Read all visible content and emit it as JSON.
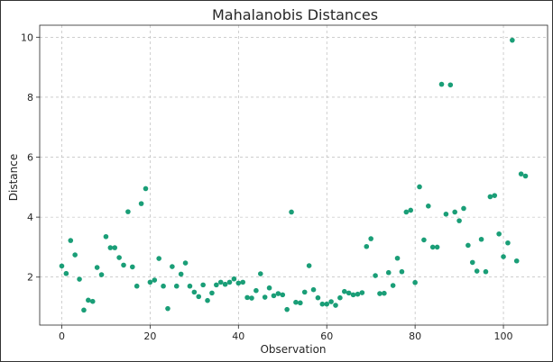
{
  "chart_data": {
    "type": "scatter",
    "title": "Mahalanobis Distances",
    "xlabel": "Observation",
    "ylabel": "Distance",
    "xlim": [
      -5,
      110
    ],
    "ylim": [
      0.4,
      10.4
    ],
    "x_ticks": [
      0,
      20,
      40,
      60,
      80,
      100
    ],
    "y_ticks": [
      2,
      4,
      6,
      8,
      10
    ],
    "grid": true,
    "marker_color": "#1a9e77",
    "x": [
      0,
      1,
      2,
      3,
      4,
      5,
      6,
      7,
      8,
      9,
      10,
      11,
      12,
      13,
      14,
      15,
      16,
      17,
      18,
      19,
      20,
      21,
      22,
      23,
      24,
      25,
      26,
      27,
      28,
      29,
      30,
      31,
      32,
      33,
      34,
      35,
      36,
      37,
      38,
      39,
      40,
      41,
      42,
      43,
      44,
      45,
      46,
      47,
      48,
      49,
      50,
      51,
      52,
      53,
      54,
      55,
      56,
      57,
      58,
      59,
      60,
      61,
      62,
      63,
      64,
      65,
      66,
      67,
      68,
      69,
      70,
      71,
      72,
      73,
      74,
      75,
      76,
      77,
      78,
      79,
      80,
      81,
      82,
      83,
      84,
      85,
      86,
      87,
      88,
      89,
      90,
      91,
      92,
      93,
      94,
      95,
      96,
      97,
      98,
      99,
      100,
      101,
      102,
      103,
      104,
      105
    ],
    "y": [
      2.37,
      2.12,
      3.22,
      2.74,
      1.93,
      0.9,
      1.23,
      1.19,
      2.32,
      2.08,
      3.35,
      2.98,
      2.98,
      2.65,
      2.4,
      4.18,
      2.34,
      1.7,
      4.45,
      4.95,
      1.83,
      1.9,
      2.62,
      1.7,
      0.95,
      2.35,
      1.7,
      2.1,
      2.47,
      1.7,
      1.5,
      1.35,
      1.74,
      1.22,
      1.47,
      1.74,
      1.83,
      1.76,
      1.83,
      1.94,
      1.8,
      1.83,
      1.32,
      1.3,
      1.55,
      2.11,
      1.33,
      1.64,
      1.38,
      1.45,
      1.41,
      0.92,
      4.17,
      1.16,
      1.14,
      1.5,
      2.38,
      1.58,
      1.31,
      1.1,
      1.1,
      1.18,
      1.06,
      1.31,
      1.52,
      1.47,
      1.41,
      1.43,
      1.48,
      3.02,
      3.28,
      2.05,
      1.45,
      1.46,
      2.15,
      1.72,
      2.63,
      2.18,
      4.17,
      4.23,
      1.82,
      5.01,
      3.24,
      4.37,
      3.0,
      3.0,
      8.43,
      4.1,
      8.41,
      4.17,
      3.88,
      4.29,
      3.06,
      2.49,
      2.2,
      3.26,
      2.18,
      4.68,
      4.72,
      3.44,
      2.68,
      3.14,
      9.9,
      2.54,
      5.44,
      5.37
    ]
  }
}
